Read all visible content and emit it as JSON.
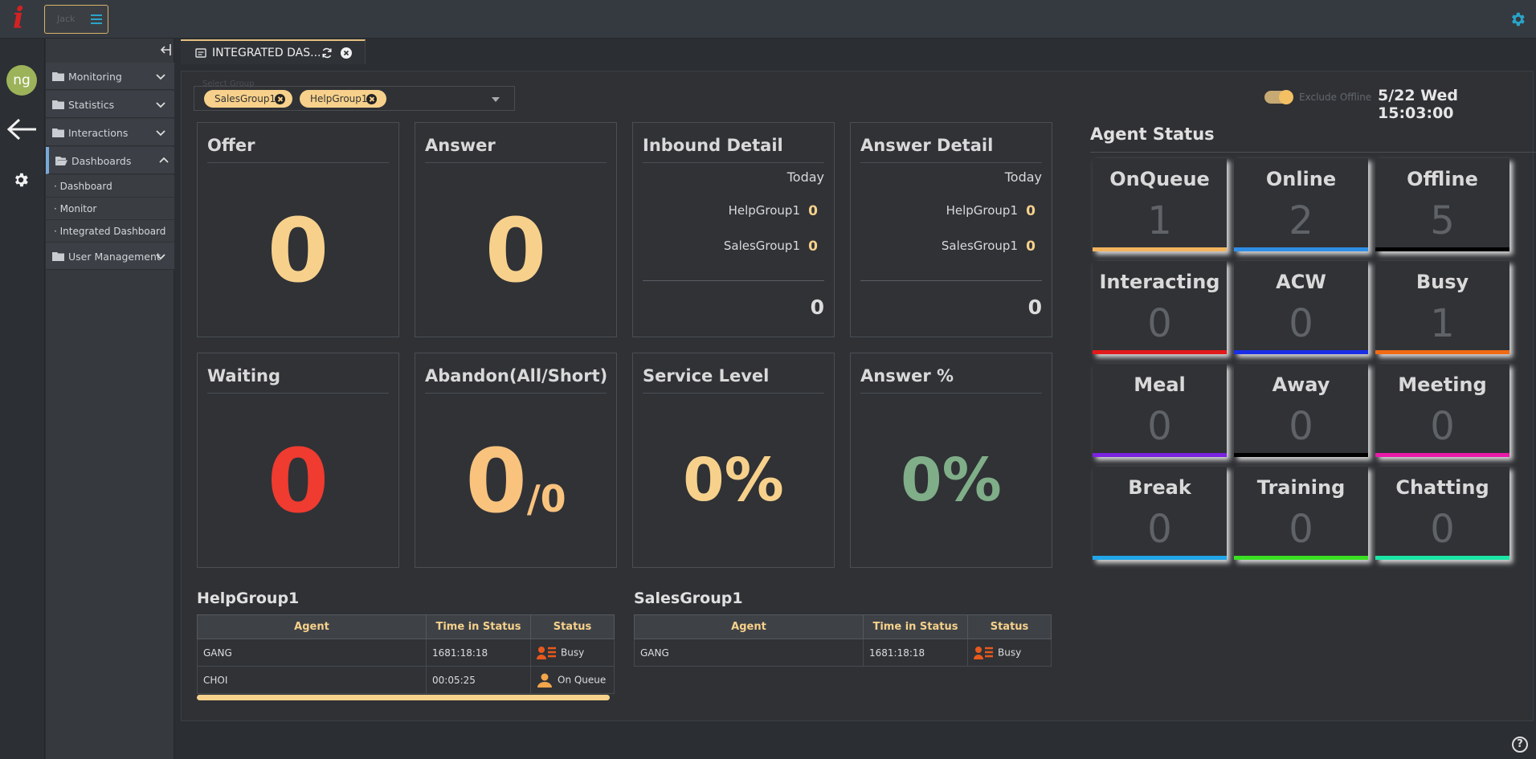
{
  "brand": {
    "logo": "i",
    "box_text": "Jack"
  },
  "user": {
    "initials": "ng"
  },
  "sidebar": {
    "menus": [
      {
        "label": "Monitoring"
      },
      {
        "label": "Statistics"
      },
      {
        "label": "Interactions"
      },
      {
        "label": "Dashboards"
      },
      {
        "label": "User Management"
      }
    ],
    "dashboard_items": [
      {
        "label": "Dashboard"
      },
      {
        "label": "Monitor"
      },
      {
        "label": "Integrated Dashboard"
      }
    ]
  },
  "tab": {
    "title": "INTEGRATED DAS..."
  },
  "filter": {
    "placeholder": "Select Group",
    "chips": [
      {
        "label": "SalesGroup1"
      },
      {
        "label": "HelpGroup1"
      }
    ]
  },
  "header": {
    "toggle_label": "Exclude Offline",
    "datetime": "5/22 Wed 15:03:00"
  },
  "cards": {
    "offer": {
      "title": "Offer",
      "value": "0"
    },
    "answer": {
      "title": "Answer",
      "value": "0"
    },
    "inbound": {
      "title": "Inbound Detail",
      "period": "Today",
      "rows": [
        {
          "group": "HelpGroup1",
          "value": "0"
        },
        {
          "group": "SalesGroup1",
          "value": "0"
        }
      ],
      "total": "0"
    },
    "answer_detail": {
      "title": "Answer Detail",
      "period": "Today",
      "rows": [
        {
          "group": "HelpGroup1",
          "value": "0"
        },
        {
          "group": "SalesGroup1",
          "value": "0"
        }
      ],
      "total": "0"
    },
    "waiting": {
      "title": "Waiting",
      "value": "0"
    },
    "abandon": {
      "title": "Abandon(All/Short)",
      "value": "0",
      "short": "/0"
    },
    "service_level": {
      "title": "Service Level",
      "value": "0%"
    },
    "answer_pct": {
      "title": "Answer %",
      "value": "0%"
    }
  },
  "agent_status": {
    "title": "Agent Status",
    "tiles": [
      {
        "name": "OnQueue",
        "value": "1",
        "color": "#f2b35e"
      },
      {
        "name": "Online",
        "value": "2",
        "color": "#2f8fe6"
      },
      {
        "name": "Offline",
        "value": "5",
        "color": "#000000"
      },
      {
        "name": "Interacting",
        "value": "0",
        "color": "#e21a1a"
      },
      {
        "name": "ACW",
        "value": "0",
        "color": "#1a2ee6"
      },
      {
        "name": "Busy",
        "value": "1",
        "color": "#f06a14"
      },
      {
        "name": "Meal",
        "value": "0",
        "color": "#7a22e0"
      },
      {
        "name": "Away",
        "value": "0",
        "color": "#000000"
      },
      {
        "name": "Meeting",
        "value": "0",
        "color": "#e81aa8"
      },
      {
        "name": "Break",
        "value": "0",
        "color": "#21a6e8"
      },
      {
        "name": "Training",
        "value": "0",
        "color": "#3ae023"
      },
      {
        "name": "Chatting",
        "value": "0",
        "color": "#1be6a6"
      }
    ]
  },
  "groups": [
    {
      "title": "HelpGroup1",
      "columns": [
        "Agent",
        "Time in Status",
        "Status"
      ],
      "rows": [
        {
          "agent": "GANG",
          "time": "1681:18:18",
          "status": "Busy",
          "icon": "busy-icon"
        },
        {
          "agent": "CHOI",
          "time": "00:05:25",
          "status": "On Queue",
          "icon": "person-icon"
        }
      ]
    },
    {
      "title": "SalesGroup1",
      "columns": [
        "Agent",
        "Time in Status",
        "Status"
      ],
      "rows": [
        {
          "agent": "GANG",
          "time": "1681:18:18",
          "status": "Busy",
          "icon": "busy-icon"
        }
      ]
    }
  ]
}
